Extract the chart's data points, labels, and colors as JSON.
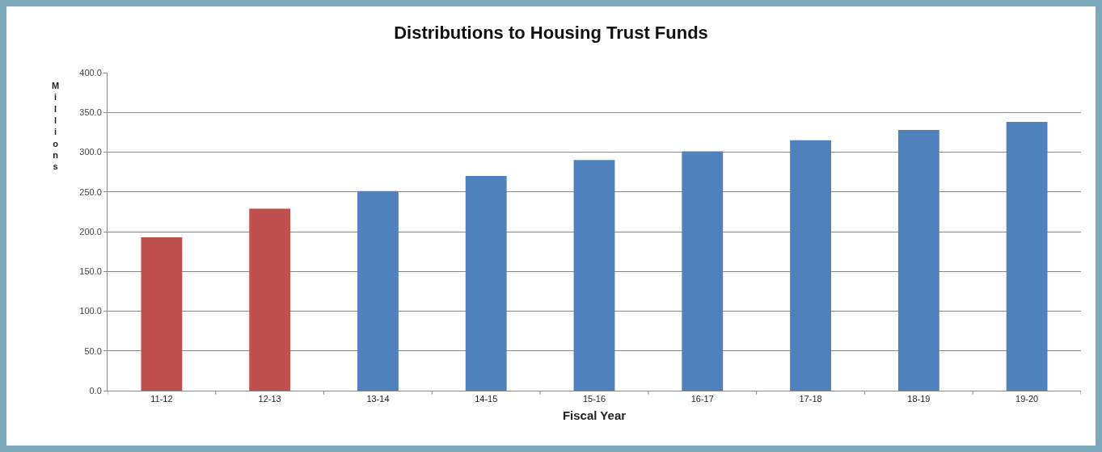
{
  "chart_data": {
    "type": "bar",
    "title": "Distributions to Housing Trust Funds",
    "xlabel": "Fiscal Year",
    "ylabel": "Millions",
    "categories": [
      "11-12",
      "12-13",
      "13-14",
      "14-15",
      "15-16",
      "16-17",
      "17-18",
      "18-19",
      "19-20"
    ],
    "values": [
      193,
      229,
      251,
      270,
      290,
      301,
      315,
      328,
      338
    ],
    "colors": [
      "#c0504d",
      "#c0504d",
      "#4f81bd",
      "#4f81bd",
      "#4f81bd",
      "#4f81bd",
      "#4f81bd",
      "#4f81bd",
      "#4f81bd"
    ],
    "ylim": [
      0,
      400
    ],
    "yticks": [
      {
        "value": 0,
        "label": "0.0"
      },
      {
        "value": 50,
        "label": "50.0"
      },
      {
        "value": 100,
        "label": "100.0"
      },
      {
        "value": 150,
        "label": "150.0"
      },
      {
        "value": 200,
        "label": "200.0"
      },
      {
        "value": 250,
        "label": "250.0"
      },
      {
        "value": 300,
        "label": "300.0"
      },
      {
        "value": 350,
        "label": "350.0"
      },
      {
        "value": 400,
        "label": "400.0"
      }
    ],
    "grid": "y"
  }
}
